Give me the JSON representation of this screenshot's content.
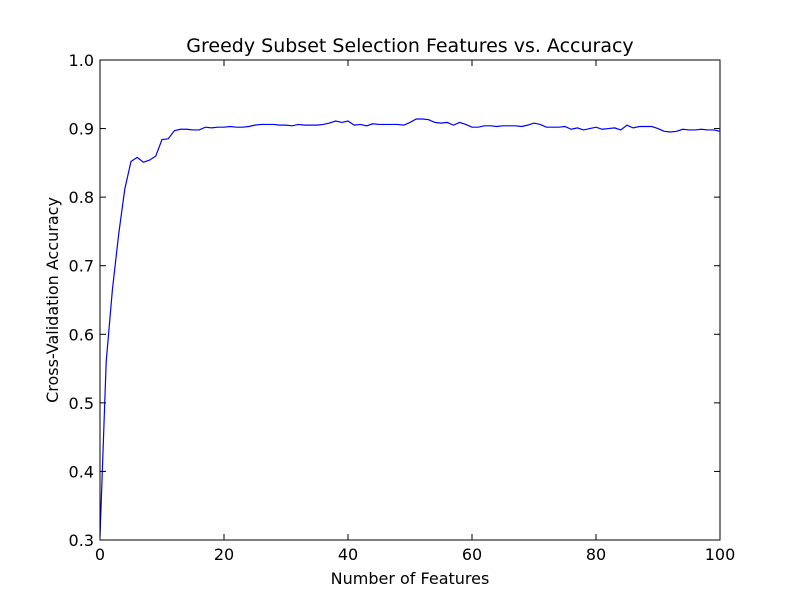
{
  "chart_data": {
    "type": "line",
    "title": "Greedy Subset Selection Features vs. Accuracy",
    "xlabel": "Number of Features",
    "ylabel": "Cross-Validation Accuracy",
    "xlim": [
      0,
      100
    ],
    "ylim": [
      0.3,
      1.0
    ],
    "xticks": [
      "0",
      "20",
      "40",
      "60",
      "80",
      "100"
    ],
    "yticks": [
      "0.3",
      "0.4",
      "0.5",
      "0.6",
      "0.7",
      "0.8",
      "0.9",
      "1.0"
    ],
    "grid": false,
    "series": [
      {
        "color": "#0000ff",
        "x": [
          0,
          1,
          2,
          3,
          4,
          5,
          6,
          7,
          8,
          9,
          10,
          11,
          12,
          13,
          14,
          15,
          16,
          17,
          18,
          19,
          20,
          21,
          22,
          23,
          24,
          25,
          26,
          27,
          28,
          29,
          30,
          31,
          32,
          33,
          34,
          35,
          36,
          37,
          38,
          39,
          40,
          41,
          42,
          43,
          44,
          45,
          46,
          47,
          48,
          49,
          50,
          51,
          52,
          53,
          54,
          55,
          56,
          57,
          58,
          59,
          60,
          61,
          62,
          63,
          64,
          65,
          66,
          67,
          68,
          69,
          70,
          71,
          72,
          73,
          74,
          75,
          76,
          77,
          78,
          79,
          80,
          81,
          82,
          83,
          84,
          85,
          86,
          87,
          88,
          89,
          90,
          91,
          92,
          93,
          94,
          95,
          96,
          97,
          98,
          99,
          100
        ],
        "y": [
          0.305,
          0.56,
          0.665,
          0.745,
          0.812,
          0.852,
          0.858,
          0.851,
          0.854,
          0.86,
          0.884,
          0.885,
          0.897,
          0.899,
          0.899,
          0.898,
          0.898,
          0.902,
          0.901,
          0.902,
          0.902,
          0.903,
          0.902,
          0.902,
          0.903,
          0.905,
          0.906,
          0.906,
          0.906,
          0.905,
          0.905,
          0.904,
          0.906,
          0.905,
          0.905,
          0.905,
          0.906,
          0.908,
          0.911,
          0.909,
          0.911,
          0.905,
          0.906,
          0.904,
          0.907,
          0.906,
          0.906,
          0.906,
          0.906,
          0.905,
          0.909,
          0.914,
          0.914,
          0.913,
          0.909,
          0.908,
          0.909,
          0.905,
          0.909,
          0.906,
          0.902,
          0.902,
          0.904,
          0.904,
          0.903,
          0.904,
          0.904,
          0.904,
          0.903,
          0.905,
          0.908,
          0.906,
          0.902,
          0.902,
          0.902,
          0.903,
          0.899,
          0.901,
          0.898,
          0.9,
          0.902,
          0.899,
          0.9,
          0.901,
          0.898,
          0.905,
          0.901,
          0.903,
          0.903,
          0.903,
          0.9,
          0.896,
          0.895,
          0.896,
          0.899,
          0.898,
          0.898,
          0.899,
          0.898,
          0.898,
          0.896
        ]
      }
    ]
  }
}
